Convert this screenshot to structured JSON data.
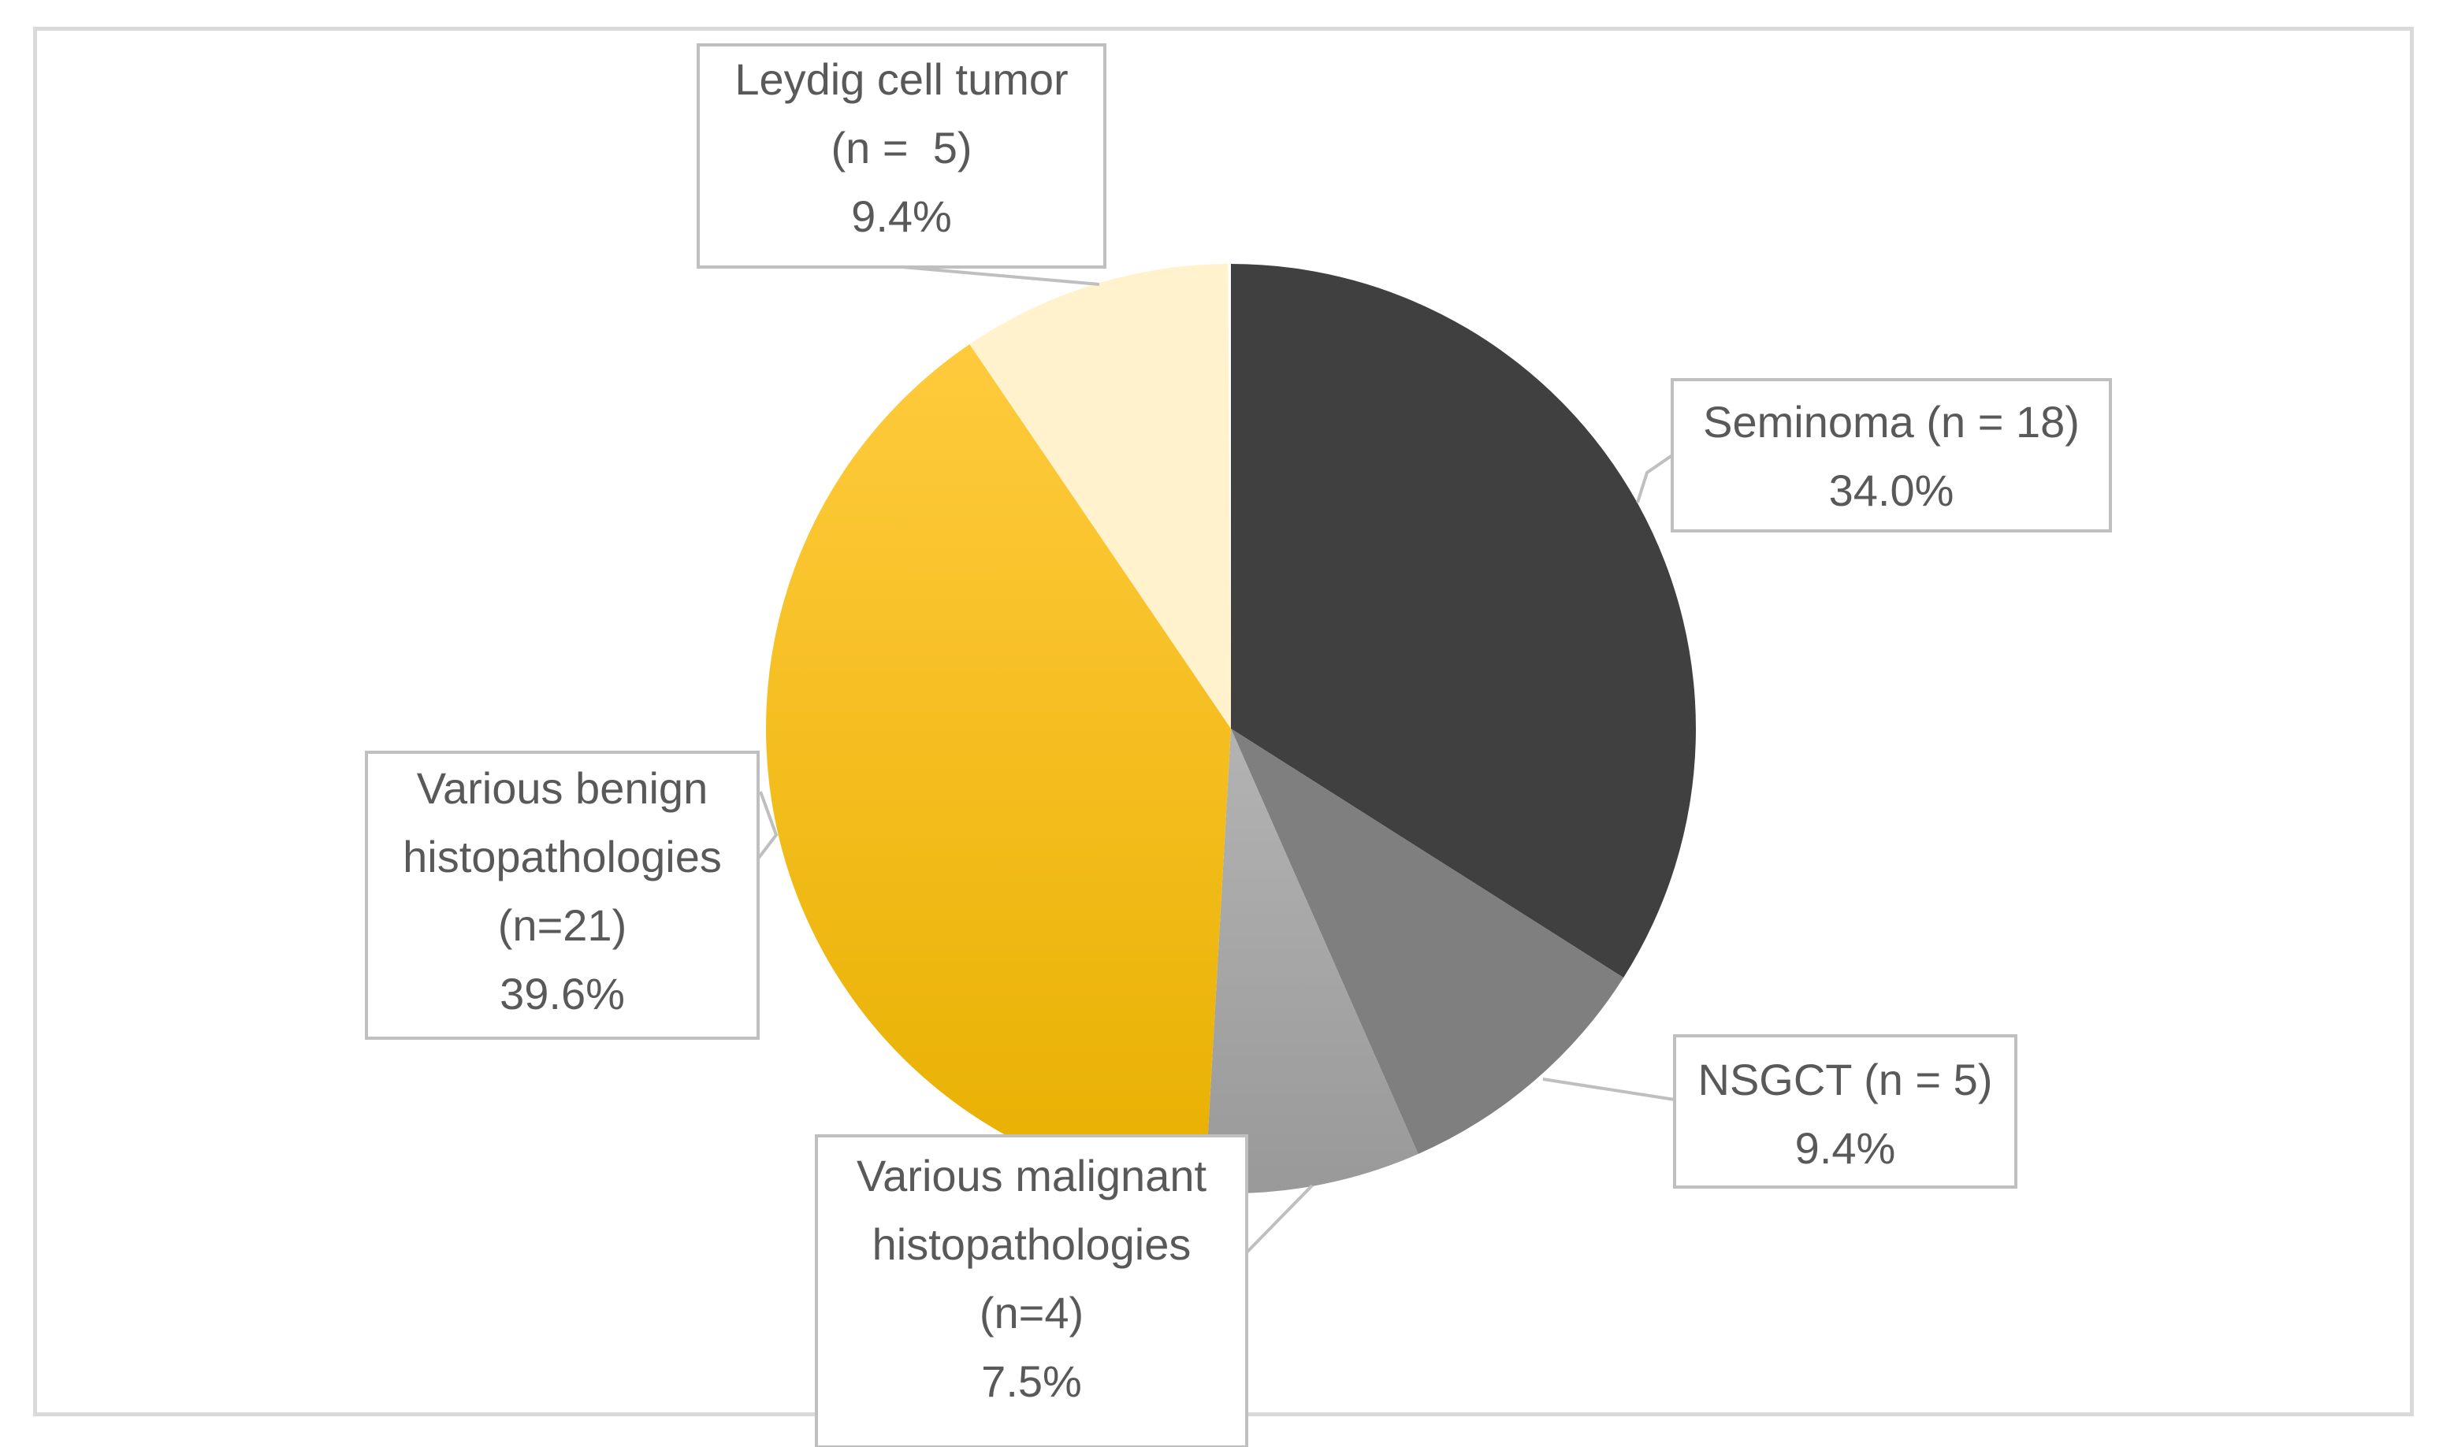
{
  "chart_data": {
    "type": "pie",
    "title": "",
    "start_angle_deg": 0,
    "direction": "clockwise",
    "slices": [
      {
        "name": "Seminoma",
        "n": 18,
        "percent": 34.0,
        "color": "#404040",
        "gradient": [
          "#404040",
          "#404040"
        ],
        "label_lines": [
          "Seminoma (n = 18)",
          "34.0%"
        ]
      },
      {
        "name": "NSGCT",
        "n": 5,
        "percent": 9.4,
        "color": "#7f7f7f",
        "gradient": [
          "#7f7f7f",
          "#7f7f7f"
        ],
        "label_lines": [
          "NSGCT (n = 5)",
          "9.4%"
        ]
      },
      {
        "name": "Various malignant histopathologies",
        "n": 4,
        "percent": 7.5,
        "color": "#a6a6a6",
        "gradient": [
          "#b3b3b3",
          "#999999"
        ],
        "label_lines": [
          "Various malignant",
          "histopathologies",
          "(n=4)",
          "7.5%"
        ]
      },
      {
        "name": "Various benign histopathologies",
        "n": 21,
        "percent": 39.6,
        "color": "#ffc000",
        "gradient": [
          "#ffcb3d",
          "#e8b000"
        ],
        "label_lines": [
          "Various benign",
          "histopathologies",
          "(n=21)",
          "39.6%"
        ]
      },
      {
        "name": "Leydig cell tumor",
        "n": 5,
        "percent": 9.4,
        "color": "#fff2cc",
        "gradient": [
          "#fff2cc",
          "#fff2cc"
        ],
        "label_lines": [
          "Leydig cell tumor",
          "(n =  5)",
          "9.4%"
        ]
      }
    ]
  }
}
